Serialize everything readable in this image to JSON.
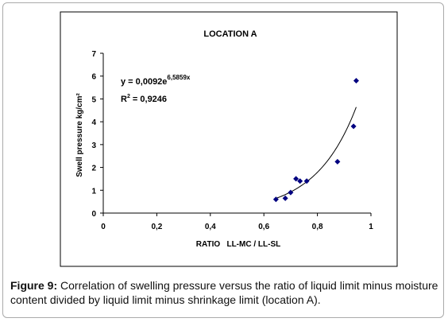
{
  "chart_data": {
    "type": "scatter",
    "title": "LOCATION A",
    "x_label": "RATIO   LL-MC / LL-SL",
    "y_label": "Swell pressure kg/cm²",
    "x": [
      0.645,
      0.68,
      0.7,
      0.72,
      0.735,
      0.76,
      0.875,
      0.935,
      0.945
    ],
    "values": [
      0.6,
      0.65,
      0.9,
      1.5,
      1.4,
      1.4,
      2.25,
      3.8,
      5.8
    ],
    "color": "#000080",
    "xlim": [
      0,
      1
    ],
    "ylim": [
      0,
      7
    ],
    "xticks": [
      0,
      {
        "value": 0.2,
        "label": "0,2"
      },
      {
        "value": 0.4,
        "label": "0,4"
      },
      {
        "value": 0.6,
        "label": "0,6"
      },
      {
        "value": 0.8,
        "label": "0,8"
      },
      1
    ],
    "yticks": [
      0,
      1,
      2,
      3,
      4,
      5,
      6,
      7
    ],
    "trendline": {
      "type": "exponential",
      "a": 0.0092,
      "b": 6.5859,
      "x": [
        0.64,
        0.945
      ],
      "color": "#000000"
    },
    "equation": {
      "text": "y = 0,0092e",
      "superscript": "6,5859x"
    },
    "r_squared": {
      "text": "R",
      "superscript": "2",
      "rest": " = 0,9246"
    }
  },
  "caption": {
    "label": "Figure 9:",
    "text": " Correlation of swelling pressure versus the ratio of liquid limit minus moisture content divided by liquid limit minus shrinkage limit (location A)."
  }
}
